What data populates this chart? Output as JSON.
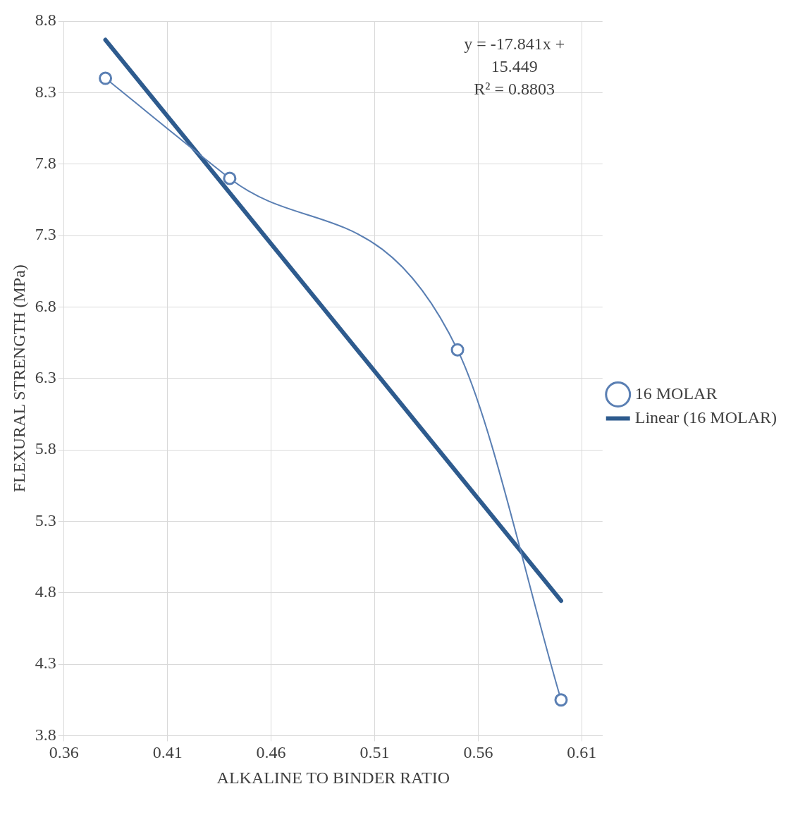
{
  "chart_data": {
    "type": "line",
    "xlabel": "ALKALINE TO BINDER RATIO",
    "ylabel": "FLEXURAL STRENGTH (MPa)",
    "annotations": [
      "y = -17.841x + 15.449",
      "R² = 0.8803"
    ],
    "xlim": [
      0.36,
      0.62
    ],
    "xticks": [
      0.36,
      0.41,
      0.46,
      0.51,
      0.56,
      0.61
    ],
    "ylim": [
      3.8,
      8.8
    ],
    "yticks": [
      3.8,
      4.3,
      4.8,
      5.3,
      5.8,
      6.3,
      6.8,
      7.3,
      7.8,
      8.3,
      8.8
    ],
    "grid": true,
    "legend": "right",
    "marker": "circle",
    "line_style": "solid",
    "series": [
      {
        "name": "16 MOLAR",
        "color": "#5a7fb3",
        "x": [
          0.38,
          0.44,
          0.55,
          0.6
        ],
        "values": [
          8.4,
          7.7,
          6.5,
          4.05
        ]
      },
      {
        "name": "Linear (16 MOLAR)",
        "color": "#2e5b8e",
        "x": [
          0.38,
          0.6
        ],
        "values": [
          8.669,
          4.744
        ],
        "marker": "none"
      }
    ]
  }
}
